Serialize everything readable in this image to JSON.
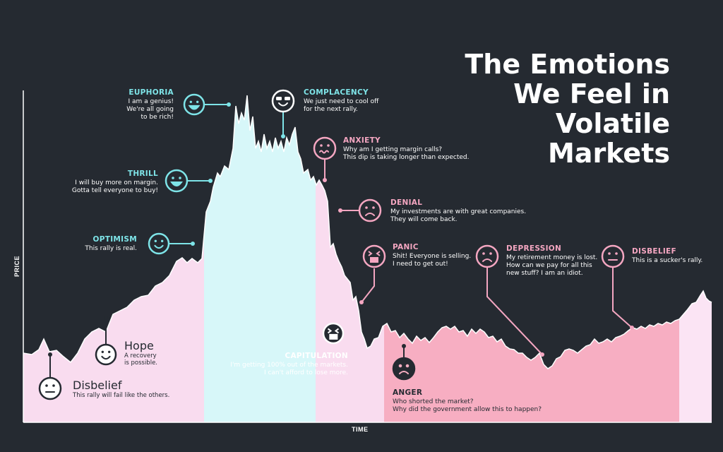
{
  "title_lines": [
    "The Emotions",
    "We Feel in",
    "Volatile",
    "Markets"
  ],
  "chart_data": {
    "type": "area",
    "xlabel": "TIME",
    "ylabel": "PRICE",
    "grid": false,
    "phase_colors": {
      "light_pink": "#f9dcef",
      "cyan": "#d7f7f9",
      "pink": "#f7aec2",
      "very_light_pink": "#fbe4f4"
    },
    "accent_colors": {
      "positive": "#7ee4e8",
      "negative": "#f4a6c1",
      "line": "#ffffff"
    },
    "annotations": [
      {
        "name": "EUPHORIA",
        "desc": "I am a genius!\nWe're all going\nto be rich!",
        "icon": "grinning-face-icon"
      },
      {
        "name": "COMPLACENCY",
        "desc": "We just need to cool off\nfor the next rally.",
        "icon": "sunglasses-face-icon"
      },
      {
        "name": "ANXIETY",
        "desc": "Why am I getting margin calls?\nThis dip is taking longer than expected.",
        "icon": "wavy-mouth-face-icon"
      },
      {
        "name": "THRILL",
        "desc": "I will buy more on margin.\nGotta tell everyone to buy!",
        "icon": "big-smile-face-icon"
      },
      {
        "name": "DENIAL",
        "desc": "My investments are with great companies.\nThey will come back.",
        "icon": "frowning-face-icon"
      },
      {
        "name": "OPTIMISM",
        "desc": "This rally is real.",
        "icon": "smiling-face-icon"
      },
      {
        "name": "PANIC",
        "desc": "Shit! Everyone is selling.\nI need to get out!",
        "icon": "screaming-face-icon"
      },
      {
        "name": "DEPRESSION",
        "desc": "My retirement money is lost.\nHow can we pay for all this\nnew stuff? I am an idiot.",
        "icon": "sad-face-icon"
      },
      {
        "name": "DISBELIEF",
        "desc": "This is a sucker's rally.",
        "icon": "unamused-face-icon"
      },
      {
        "name": "CAPITULATION",
        "desc": "I'm getting 100% out of the markets.\nI can't afford to lose more.",
        "icon": "squinting-face-icon"
      },
      {
        "name": "ANGER",
        "desc": "Who shorted the market?\nWhy did the government allow this to happen?",
        "icon": "angry-face-icon"
      },
      {
        "name": "Hope",
        "desc": "A recovery\nis possible.",
        "icon": "smiling-face-icon"
      },
      {
        "name": "Disbelief",
        "desc": "This rally will fail like the others.",
        "icon": "neutral-face-icon"
      }
    ]
  }
}
